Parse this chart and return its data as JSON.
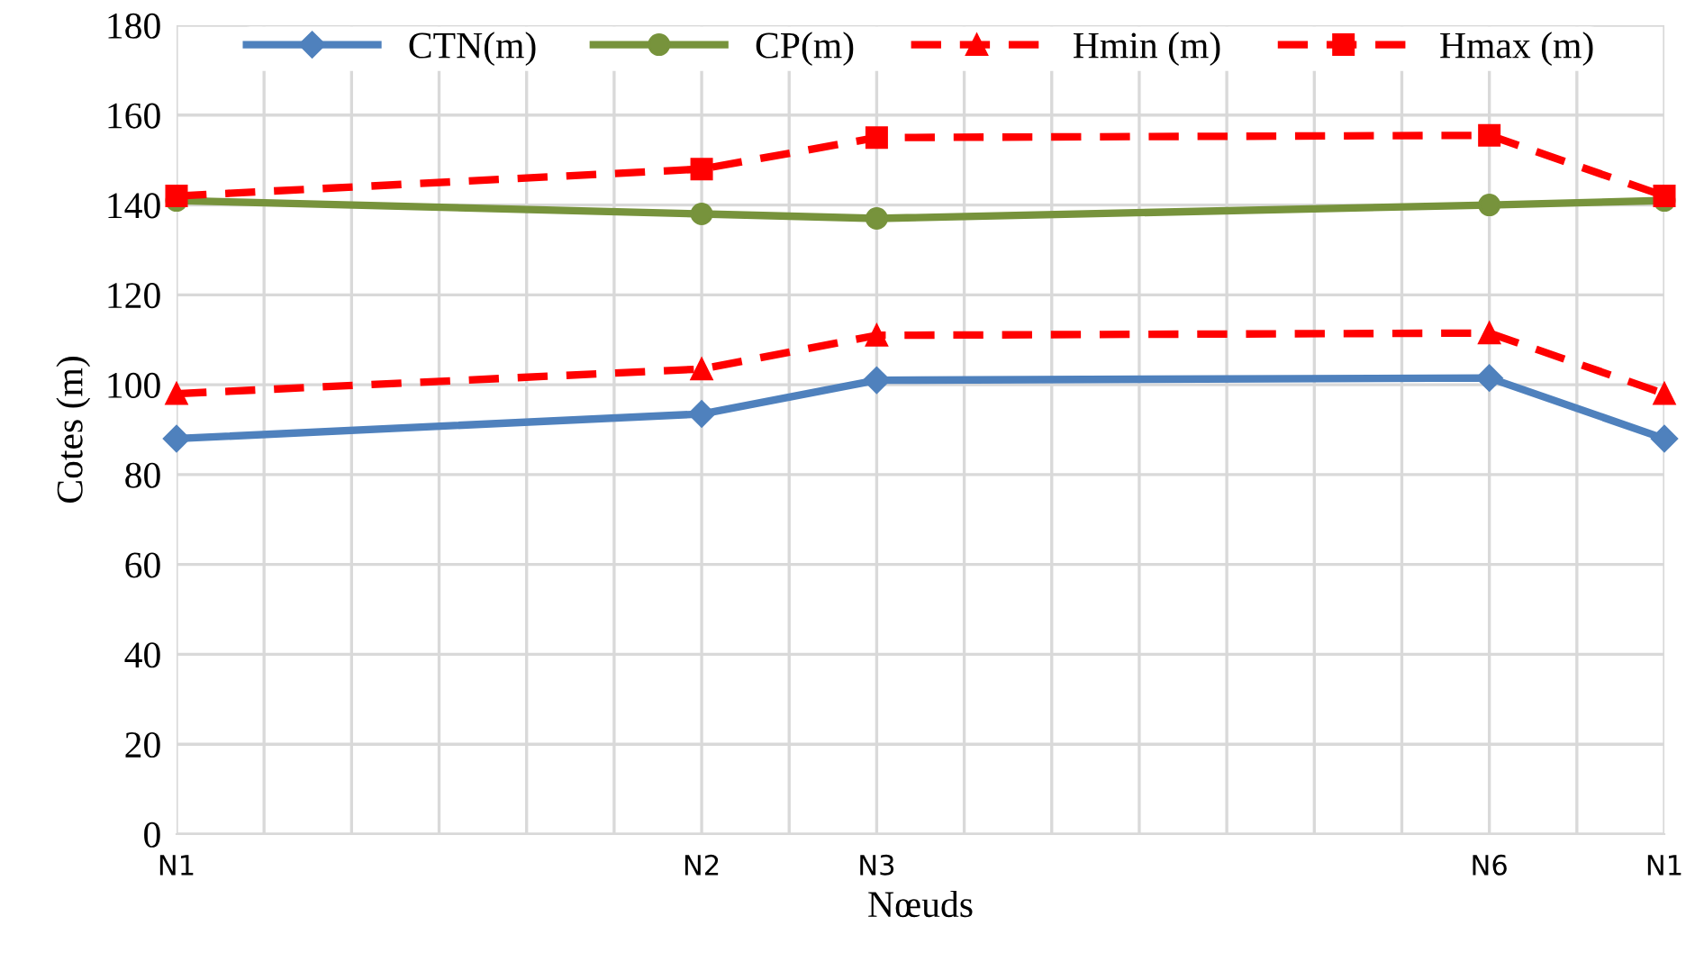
{
  "chart_data": {
    "type": "line",
    "xlabel": "Nœuds",
    "ylabel": "Cotes (m)",
    "categories": [
      "N1",
      null,
      null,
      null,
      null,
      null,
      "N2",
      null,
      "N3",
      null,
      null,
      null,
      null,
      null,
      null,
      "N6",
      null,
      "N1"
    ],
    "ylim": [
      0,
      180
    ],
    "yticks": [
      0,
      20,
      40,
      60,
      80,
      100,
      120,
      140,
      160,
      180
    ],
    "grid": true,
    "legend": "top",
    "series": [
      {
        "name": "CTN(m)",
        "color": "#4f81bd",
        "marker": "diamond",
        "line_style": "solid",
        "values": [
          88,
          null,
          null,
          null,
          null,
          null,
          93.5,
          null,
          101,
          null,
          null,
          null,
          null,
          null,
          null,
          101.5,
          null,
          88
        ]
      },
      {
        "name": "CP(m)",
        "color": "#77933c",
        "marker": "circle",
        "line_style": "solid",
        "values": [
          141,
          null,
          null,
          null,
          null,
          null,
          138,
          null,
          137,
          null,
          null,
          null,
          null,
          null,
          null,
          140,
          null,
          141
        ]
      },
      {
        "name": "Hmin (m)",
        "color": "#ff0000",
        "marker": "triangle",
        "line_style": "dashed",
        "values": [
          98,
          null,
          null,
          null,
          null,
          null,
          103.5,
          null,
          111,
          null,
          null,
          null,
          null,
          null,
          null,
          111.5,
          null,
          98
        ]
      },
      {
        "name": "Hmax (m)",
        "color": "#ff0000",
        "marker": "square",
        "line_style": "dashed",
        "values": [
          142,
          null,
          null,
          null,
          null,
          null,
          148,
          null,
          155,
          null,
          null,
          null,
          null,
          null,
          null,
          155.5,
          null,
          142
        ]
      }
    ]
  }
}
